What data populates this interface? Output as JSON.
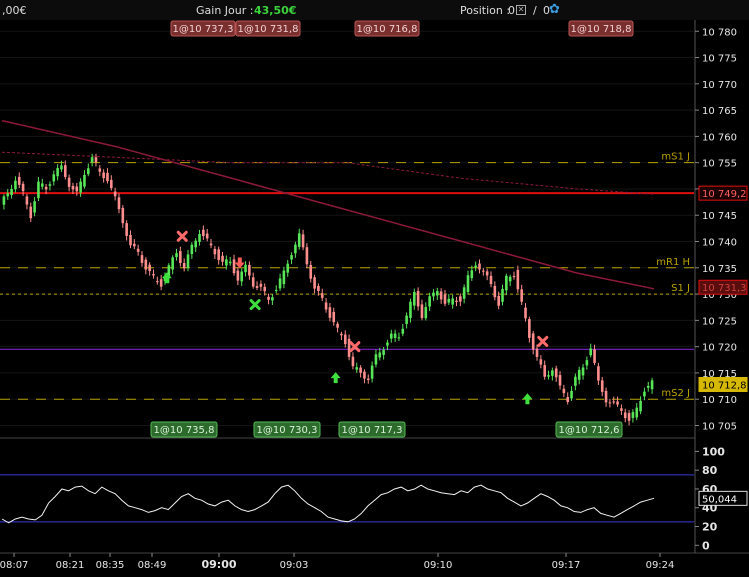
{
  "topbar": {
    "balance": ",00€",
    "gain_label": "Gain Jour :",
    "gain_value": "43,50€",
    "position_label": "Position :",
    "position_value": "0",
    "position_sep": "/",
    "position_value2": "0"
  },
  "colors": {
    "background": "#000000",
    "up_candle": "#57e657",
    "down_candle": "#ff8f8f",
    "dashed_level": "#b8a300",
    "red_line": "#e01010",
    "purple_line": "#8a2be2",
    "ma_line": "#8b1a3a",
    "buy_tag": "#2d6b2d",
    "sell_tag": "#7a2f2f",
    "price_tag": "#d7b800"
  },
  "chart_data": [
    {
      "type": "candlestick",
      "ylim": [
        10703,
        10781
      ],
      "y_ticks": [
        10705,
        10710,
        10715,
        10720,
        10725,
        10730,
        10735,
        10740,
        10745,
        10750,
        10755,
        10760,
        10765,
        10770,
        10775,
        10780
      ],
      "y_tick_labels": [
        "10 705",
        "10 710",
        "10 715",
        "10 720",
        "10 725",
        "10 730",
        "10 735",
        "10 740",
        "10 745",
        "10 750",
        "10 755",
        "10 760",
        "10 765",
        "10 770",
        "10 775",
        "10 780"
      ],
      "x_tick_labels": [
        "08:07",
        "08:21",
        "08:35",
        "08:49",
        "09:00",
        "09:03",
        "09:10",
        "09:17",
        "09:24"
      ],
      "path_points": [
        [
          0,
          10747
        ],
        [
          2,
          10749
        ],
        [
          4,
          10752
        ],
        [
          6,
          10749
        ],
        [
          8,
          10745
        ],
        [
          10,
          10751
        ],
        [
          12,
          10750
        ],
        [
          14,
          10753
        ],
        [
          16,
          10754
        ],
        [
          18,
          10751
        ],
        [
          20,
          10749
        ],
        [
          22,
          10753
        ],
        [
          24,
          10756
        ],
        [
          26,
          10753
        ],
        [
          28,
          10752
        ],
        [
          30,
          10748
        ],
        [
          32,
          10744
        ],
        [
          34,
          10739
        ],
        [
          36,
          10738
        ],
        [
          38,
          10735
        ],
        [
          40,
          10733
        ],
        [
          42,
          10732
        ],
        [
          44,
          10735
        ],
        [
          46,
          10738
        ],
        [
          48,
          10735
        ],
        [
          50,
          10739
        ],
        [
          52,
          10742
        ],
        [
          54,
          10740
        ],
        [
          56,
          10738
        ],
        [
          58,
          10736
        ],
        [
          60,
          10736
        ],
        [
          62,
          10733
        ],
        [
          64,
          10735
        ],
        [
          66,
          10732
        ],
        [
          68,
          10731
        ],
        [
          70,
          10729
        ],
        [
          72,
          10731
        ],
        [
          74,
          10734
        ],
        [
          76,
          10738
        ],
        [
          78,
          10741
        ],
        [
          80,
          10736
        ],
        [
          82,
          10731
        ],
        [
          84,
          10729
        ],
        [
          86,
          10726
        ],
        [
          88,
          10723
        ],
        [
          90,
          10721
        ],
        [
          92,
          10716
        ],
        [
          94,
          10715
        ],
        [
          96,
          10714
        ],
        [
          98,
          10718
        ],
        [
          100,
          10720
        ],
        [
          102,
          10722
        ],
        [
          104,
          10722
        ],
        [
          106,
          10726
        ],
        [
          108,
          10730
        ],
        [
          110,
          10726
        ],
        [
          112,
          10729
        ],
        [
          114,
          10731
        ],
        [
          116,
          10728
        ],
        [
          118,
          10729
        ],
        [
          120,
          10729
        ],
        [
          122,
          10733
        ],
        [
          124,
          10736
        ],
        [
          126,
          10734
        ],
        [
          128,
          10732
        ],
        [
          130,
          10728
        ],
        [
          132,
          10733
        ],
        [
          134,
          10734
        ],
        [
          136,
          10728
        ],
        [
          138,
          10722
        ],
        [
          140,
          10718
        ],
        [
          142,
          10714
        ],
        [
          144,
          10716
        ],
        [
          146,
          10712
        ],
        [
          148,
          10710
        ],
        [
          150,
          10714
        ],
        [
          152,
          10716
        ],
        [
          154,
          10720
        ],
        [
          156,
          10713
        ],
        [
          158,
          10710
        ],
        [
          160,
          10709
        ],
        [
          162,
          10708
        ],
        [
          164,
          10706
        ],
        [
          166,
          10708
        ],
        [
          168,
          10712
        ],
        [
          170,
          10713
        ]
      ],
      "levels": [
        {
          "label": "mS1 J",
          "value": 10755,
          "style": "dashed"
        },
        {
          "label": "mR1 H",
          "value": 10735,
          "style": "dashed"
        },
        {
          "label": "S1 J",
          "value": 10730,
          "style": "dotted"
        },
        {
          "label": "mS2 J",
          "value": 10710,
          "style": "dashed"
        },
        {
          "label": "",
          "value": 10749.2,
          "style": "solid-red"
        },
        {
          "label": "",
          "value": 10719.5,
          "style": "solid-purple"
        }
      ],
      "moving_averages": [
        {
          "name": "",
          "points": [
            [
              0,
              10763
            ],
            [
              30,
              10758
            ],
            [
              60,
              10752
            ],
            [
              90,
              10746
            ],
            [
              120,
              10740
            ],
            [
              150,
              10734
            ],
            [
              170,
              10731
            ]
          ]
        },
        {
          "name": "",
          "points": [
            [
              0,
              10757
            ],
            [
              30,
              10756
            ],
            [
              60,
              10755
            ],
            [
              90,
              10755
            ],
            [
              120,
              10752
            ],
            [
              150,
              10750
            ],
            [
              170,
              10749
            ]
          ]
        }
      ],
      "price_tags": [
        {
          "text": "10 749,2",
          "value": 10749.2,
          "style": "red"
        },
        {
          "text": "10 731,3",
          "value": 10731.3,
          "style": "darkred"
        },
        {
          "text": "10 712,8",
          "value": 10712.8,
          "style": "yellow"
        }
      ],
      "order_tags_top": [
        "1@10 737,3",
        "1@10 731,8",
        "1@10 716,8",
        "1@10 718,8"
      ],
      "order_tags_bottom": [
        "1@10 735,8",
        "1@10 730,3",
        "1@10 717,3",
        "1@10 712,6"
      ],
      "markers": [
        {
          "kind": "buy-arrow",
          "x": 43,
          "y": 10733
        },
        {
          "kind": "sell-x",
          "x": 47,
          "y": 10741
        },
        {
          "kind": "sell-arrow",
          "x": 62,
          "y": 10736
        },
        {
          "kind": "buy-x",
          "x": 66,
          "y": 10728
        },
        {
          "kind": "sell-x",
          "x": 92,
          "y": 10720
        },
        {
          "kind": "buy-arrow",
          "x": 87,
          "y": 10714
        },
        {
          "kind": "sell-x",
          "x": 141,
          "y": 10721
        },
        {
          "kind": "buy-arrow",
          "x": 137,
          "y": 10710
        }
      ]
    },
    {
      "type": "line",
      "ylim": [
        -5,
        110
      ],
      "y_ticks": [
        0,
        20,
        40,
        60,
        80,
        100
      ],
      "y_tick_labels": [
        "0",
        "20",
        "40",
        "60",
        "80",
        "100"
      ],
      "levels": [
        75,
        25
      ],
      "current_value_label": "50,044",
      "values": [
        28,
        24,
        28,
        30,
        28,
        27,
        32,
        45,
        52,
        60,
        58,
        62,
        63,
        58,
        55,
        62,
        58,
        55,
        48,
        42,
        40,
        38,
        35,
        37,
        40,
        38,
        45,
        52,
        55,
        50,
        48,
        44,
        42,
        46,
        48,
        42,
        38,
        36,
        38,
        42,
        46,
        55,
        62,
        64,
        58,
        50,
        44,
        40,
        36,
        30,
        28,
        26,
        25,
        28,
        34,
        42,
        48,
        54,
        56,
        60,
        62,
        58,
        60,
        64,
        60,
        58,
        56,
        55,
        54,
        58,
        56,
        62,
        64,
        60,
        58,
        56,
        50,
        46,
        42,
        45,
        50,
        55,
        52,
        48,
        42,
        40,
        36,
        35,
        38,
        40,
        34,
        32,
        30,
        34,
        38,
        42,
        46,
        48,
        50
      ]
    }
  ]
}
